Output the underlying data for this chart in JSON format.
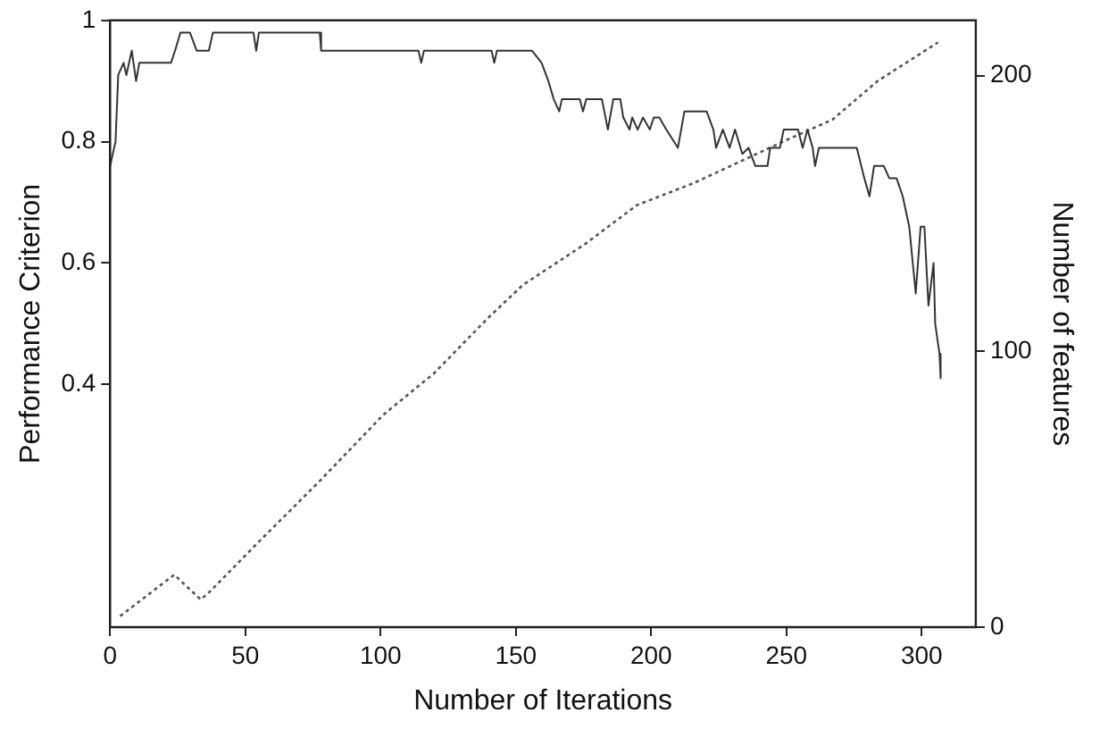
{
  "chart_data": {
    "type": "line",
    "xlabel": "Number of Iterations",
    "ylabel": "Performance Criterion",
    "y2label": "Number of features",
    "xlim": [
      0,
      320
    ],
    "xticks": [
      0,
      50,
      100,
      150,
      200,
      250,
      300
    ],
    "ylim": [
      0,
      1
    ],
    "yticks": [
      0.4,
      0.6,
      0.8,
      1
    ],
    "y2lim": [
      0,
      220
    ],
    "y2ticks": [
      0,
      100,
      200
    ],
    "grid": false,
    "legend": false,
    "marker": "none",
    "series": [
      {
        "color": "#333333",
        "line_style": "solid",
        "x": [
          0,
          2,
          3,
          5,
          6,
          8,
          9.6,
          10.8,
          22.5,
          24,
          26,
          29.5,
          32,
          36.5,
          38,
          53,
          54,
          55,
          77.5,
          78,
          114,
          115,
          116,
          141,
          142,
          143,
          156,
          159.5,
          162,
          164,
          166,
          167,
          173.6,
          174.8,
          176,
          181.8,
          184,
          186,
          188.6,
          189.7,
          192,
          193,
          195,
          197,
          199.5,
          201,
          203,
          205.6,
          209.9,
          212.3,
          220.5,
          223,
          224,
          226.5,
          229,
          231,
          233.7,
          236,
          238.5,
          243,
          244,
          247.6,
          249,
          254.3,
          256,
          257.8,
          259.7,
          260.6,
          262,
          276,
          278.8,
          280.7,
          282.4,
          286,
          288,
          290.7,
          293,
          295.4,
          297.8,
          299.6,
          301,
          302.5,
          304.4,
          305,
          306.6,
          307
        ],
        "values": [
          0.76,
          0.8,
          0.91,
          0.93,
          0.91,
          0.95,
          0.9,
          0.93,
          0.93,
          0.95,
          0.98,
          0.98,
          0.95,
          0.95,
          0.98,
          0.98,
          0.95,
          0.98,
          0.98,
          0.95,
          0.95,
          0.93,
          0.95,
          0.95,
          0.93,
          0.95,
          0.95,
          0.93,
          0.9,
          0.87,
          0.85,
          0.87,
          0.87,
          0.85,
          0.87,
          0.87,
          0.82,
          0.87,
          0.87,
          0.84,
          0.82,
          0.84,
          0.82,
          0.84,
          0.82,
          0.84,
          0.84,
          0.82,
          0.79,
          0.85,
          0.85,
          0.82,
          0.79,
          0.82,
          0.79,
          0.82,
          0.78,
          0.79,
          0.76,
          0.76,
          0.79,
          0.79,
          0.82,
          0.82,
          0.79,
          0.82,
          0.79,
          0.76,
          0.79,
          0.79,
          0.74,
          0.71,
          0.76,
          0.76,
          0.74,
          0.74,
          0.71,
          0.66,
          0.55,
          0.66,
          0.66,
          0.53,
          0.6,
          0.5,
          0.45,
          0.41
        ]
      },
      {
        "color": "#555555",
        "line_style": "dotted",
        "axis": "y2",
        "x": [
          3.7,
          23.7,
          33.5,
          37,
          54,
          77.5,
          101,
          119.7,
          139.6,
          152.5,
          175.7,
          194.7,
          215.7,
          250.9,
          267,
          283.7,
          306
        ],
        "values": [
          4,
          19,
          10,
          13,
          30,
          53,
          77,
          92,
          112,
          124,
          139,
          153,
          161,
          177,
          184,
          198,
          212
        ]
      }
    ]
  }
}
